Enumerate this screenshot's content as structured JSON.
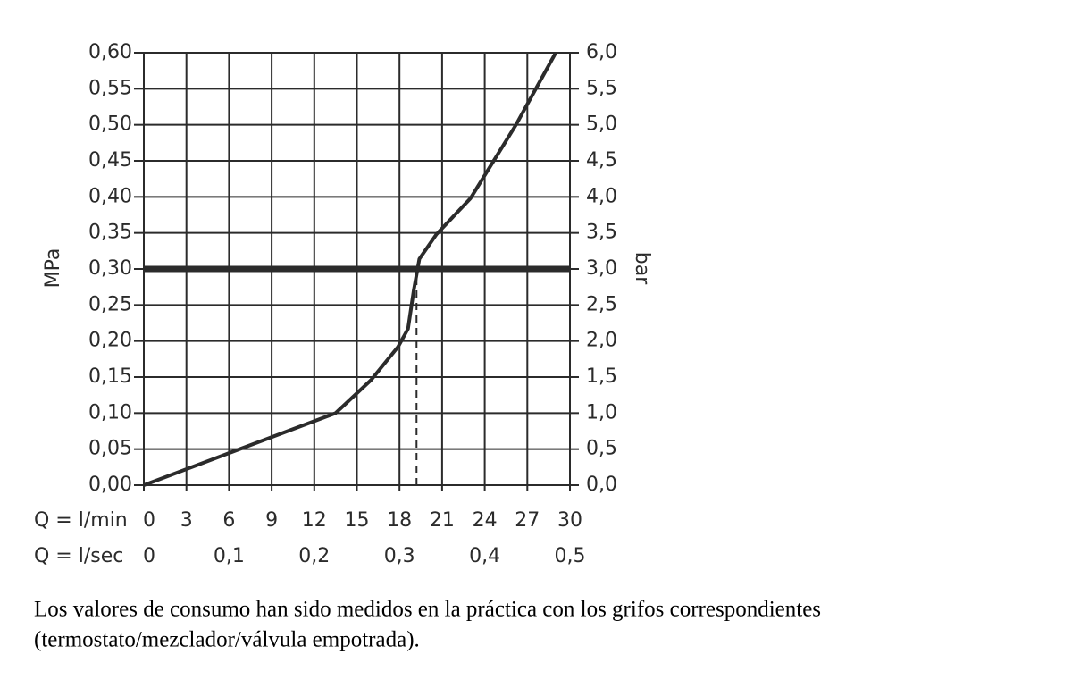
{
  "chart_data": {
    "type": "line",
    "y_label": "MPa",
    "y2_label": "bar",
    "x_label": "Q = l/min",
    "x2_label": "Q = l/sec",
    "series": [
      {
        "color": "#2b2b2b",
        "x": [
          0,
          13.5,
          16.0,
          17.9,
          18.6,
          19.0,
          19.4,
          20.6,
          23.0,
          26.2,
          29.0
        ],
        "y": [
          0,
          0.1,
          0.146,
          0.192,
          0.217,
          0.27,
          0.314,
          0.348,
          0.398,
          0.5,
          0.6
        ]
      }
    ],
    "xlim": [
      0,
      30
    ],
    "xticks": [
      0,
      3,
      6,
      9,
      12,
      15,
      18,
      21,
      24,
      27,
      30
    ],
    "x2lim": [
      0,
      0.5
    ],
    "x2ticks": [
      0,
      {
        "value": 0.1,
        "label": "0,1"
      },
      {
        "value": 0.2,
        "label": "0,2"
      },
      {
        "value": 0.3,
        "label": "0,3"
      },
      {
        "value": 0.4,
        "label": "0,4"
      },
      {
        "value": 0.5,
        "label": "0,5"
      }
    ],
    "ylim": [
      0,
      0.6
    ],
    "yticks": [
      {
        "value": 0,
        "label": "0,00"
      },
      {
        "value": 0.05,
        "label": "0,05"
      },
      {
        "value": 0.1,
        "label": "0,10"
      },
      {
        "value": 0.15,
        "label": "0,15"
      },
      {
        "value": 0.2,
        "label": "0,20"
      },
      {
        "value": 0.25,
        "label": "0,25"
      },
      {
        "value": 0.3,
        "label": "0,30"
      },
      {
        "value": 0.35,
        "label": "0,35"
      },
      {
        "value": 0.4,
        "label": "0,40"
      },
      {
        "value": 0.45,
        "label": "0,45"
      },
      {
        "value": 0.5,
        "label": "0,50"
      },
      {
        "value": 0.55,
        "label": "0,55"
      },
      {
        "value": 0.6,
        "label": "0,60"
      }
    ],
    "y2lim": [
      0,
      6
    ],
    "y2ticks": [
      {
        "value": 0,
        "label": "0,0"
      },
      {
        "value": 0.5,
        "label": "0,5"
      },
      {
        "value": 1,
        "label": "1,0"
      },
      {
        "value": 1.5,
        "label": "1,5"
      },
      {
        "value": 2,
        "label": "2,0"
      },
      {
        "value": 2.5,
        "label": "2,5"
      },
      {
        "value": 3,
        "label": "3,0"
      },
      {
        "value": 3.5,
        "label": "3,5"
      },
      {
        "value": 4,
        "label": "4,0"
      },
      {
        "value": 4.5,
        "label": "4,5"
      },
      {
        "value": 5,
        "label": "5,0"
      },
      {
        "value": 5.5,
        "label": "5,5"
      },
      {
        "value": 6,
        "label": "6,0"
      }
    ],
    "reference_y": 0.3,
    "marker_x": 19.2,
    "grid": true
  },
  "caption": [
    "Los valores de consumo han sido medidos en la práctica con los grifos correspondientes",
    "(termostato/mezclador/válvula empotrada)."
  ]
}
